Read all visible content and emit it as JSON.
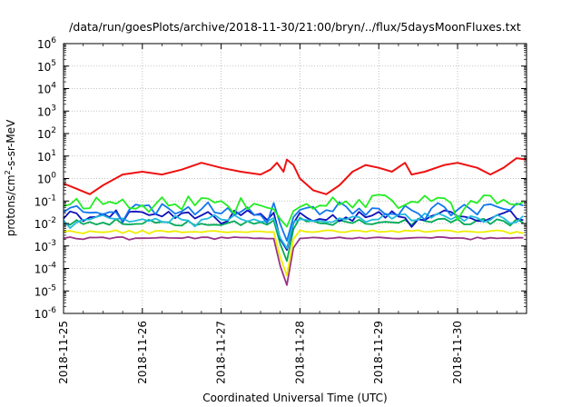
{
  "chart_data": {
    "type": "line",
    "title": "/data/run/goesPlots/archive/2018-11-30/21:00/bryn/../flux/5daysMoonFluxes.txt",
    "xlabel": "Coordinated Universal Time (UTC)",
    "ylabel": {
      "prefix": "protons/cm",
      "sup": "2",
      "suffix": "-s-sr-MeV"
    },
    "x_type": "time",
    "xlim": [
      "2018-11-25T00:00",
      "2018-11-30T21:00"
    ],
    "x_ticks": [
      "2018-11-25",
      "2018-11-26",
      "2018-11-27",
      "2018-11-28",
      "2018-11-29",
      "2018-11-30"
    ],
    "y_scale": "log",
    "ylim": [
      1e-06,
      1000000.0
    ],
    "y_ticks": [
      {
        "base": "10",
        "exp": "-6",
        "value": 1e-06
      },
      {
        "base": "10",
        "exp": "-5",
        "value": 1e-05
      },
      {
        "base": "10",
        "exp": "-4",
        "value": 0.0001
      },
      {
        "base": "10",
        "exp": "-3",
        "value": 0.001
      },
      {
        "base": "10",
        "exp": "-2",
        "value": 0.01
      },
      {
        "base": "10",
        "exp": "-1",
        "value": 0.1
      },
      {
        "base": "10",
        "exp": "0",
        "value": 1
      },
      {
        "base": "10",
        "exp": "1",
        "value": 10
      },
      {
        "base": "10",
        "exp": "2",
        "value": 100
      },
      {
        "base": "10",
        "exp": "3",
        "value": 1000
      },
      {
        "base": "10",
        "exp": "4",
        "value": 10000
      },
      {
        "base": "10",
        "exp": "5",
        "value": 100000
      },
      {
        "base": "10",
        "exp": "6",
        "value": 1000000
      }
    ],
    "grid": true,
    "legend": "none",
    "series": [
      {
        "color": "#ee1111",
        "points": [
          [
            "2018-11-25T00:00",
            0.6
          ],
          [
            "2018-11-25T04:00",
            0.35
          ],
          [
            "2018-11-25T08:00",
            0.2
          ],
          [
            "2018-11-25T12:00",
            0.5
          ],
          [
            "2018-11-25T18:00",
            1.5
          ],
          [
            "2018-11-26T00:00",
            2.0
          ],
          [
            "2018-11-26T06:00",
            1.5
          ],
          [
            "2018-11-26T12:00",
            2.5
          ],
          [
            "2018-11-26T18:00",
            5.0
          ],
          [
            "2018-11-27T00:00",
            3.0
          ],
          [
            "2018-11-27T06:00",
            2.0
          ],
          [
            "2018-11-27T12:00",
            1.5
          ],
          [
            "2018-11-27T15:00",
            2.5
          ],
          [
            "2018-11-27T17:00",
            5.0
          ],
          [
            "2018-11-27T19:00",
            2.0
          ],
          [
            "2018-11-27T20:00",
            7.0
          ],
          [
            "2018-11-27T22:00",
            4.0
          ],
          [
            "2018-11-28T00:00",
            1.0
          ],
          [
            "2018-11-28T04:00",
            0.3
          ],
          [
            "2018-11-28T08:00",
            0.2
          ],
          [
            "2018-11-28T12:00",
            0.5
          ],
          [
            "2018-11-28T16:00",
            2.0
          ],
          [
            "2018-11-28T20:00",
            4.0
          ],
          [
            "2018-11-29T00:00",
            3.0
          ],
          [
            "2018-11-29T04:00",
            2.0
          ],
          [
            "2018-11-29T08:00",
            5.0
          ],
          [
            "2018-11-29T10:00",
            1.5
          ],
          [
            "2018-11-29T14:00",
            2.0
          ],
          [
            "2018-11-29T20:00",
            4.0
          ],
          [
            "2018-11-30T00:00",
            5.0
          ],
          [
            "2018-11-30T06:00",
            3.0
          ],
          [
            "2018-11-30T10:00",
            1.5
          ],
          [
            "2018-11-30T14:00",
            3.0
          ],
          [
            "2018-11-30T18:00",
            8.0
          ],
          [
            "2018-11-30T21:00",
            7.0
          ]
        ]
      },
      {
        "color": "#22ee22",
        "base": 0.09,
        "jitter": 0.35,
        "seed": 11
      },
      {
        "color": "#1177ee",
        "base": 0.045,
        "jitter": 0.3,
        "seed": 23
      },
      {
        "color": "#22bbdd",
        "base": 0.018,
        "jitter": 0.22,
        "seed": 37
      },
      {
        "color": "#1111bb",
        "base": 0.022,
        "jitter": 0.25,
        "seed": 41
      },
      {
        "color": "#00aa55",
        "base": 0.012,
        "jitter": 0.18,
        "seed": 53
      },
      {
        "color": "#eeee00",
        "base": 0.0045,
        "jitter": 0.05,
        "seed": 67
      },
      {
        "color": "#993388",
        "base": 0.0023,
        "jitter": 0.04,
        "seed": 79
      }
    ],
    "dip": {
      "center": "2018-11-27T19:30",
      "minima": [
        null,
        0.004,
        0.001,
        0.0004,
        0.0003,
        0.0001,
        2e-05,
        7e-06
      ]
    },
    "sample_hours": 2
  }
}
